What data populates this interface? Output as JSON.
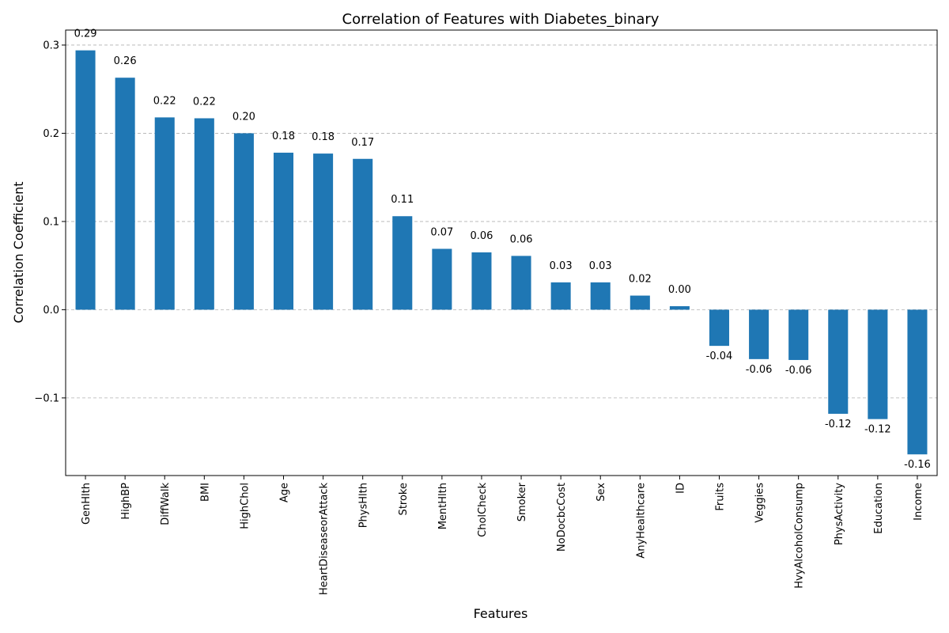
{
  "chart_data": {
    "type": "bar",
    "title": "Correlation of Features with Diabetes_binary",
    "xlabel": "Features",
    "ylabel": "Correlation Coefficient",
    "ylim": [
      -0.188,
      0.317
    ],
    "yticks": [
      -0.1,
      0.0,
      0.1,
      0.2,
      0.3
    ],
    "ytick_labels": [
      "−0.1",
      "0.0",
      "0.1",
      "0.2",
      "0.3"
    ],
    "grid": "y-dashed",
    "bar_color": "#1f77b4",
    "categories": [
      "GenHlth",
      "HighBP",
      "DiffWalk",
      "BMI",
      "HighChol",
      "Age",
      "HeartDiseaseorAttack",
      "PhysHlth",
      "Stroke",
      "MentHlth",
      "CholCheck",
      "Smoker",
      "NoDocbcCost",
      "Sex",
      "AnyHealthcare",
      "ID",
      "Fruits",
      "Veggies",
      "HvyAlcoholConsump",
      "PhysActivity",
      "Education",
      "Income"
    ],
    "values": [
      0.294,
      0.263,
      0.218,
      0.217,
      0.2,
      0.178,
      0.177,
      0.171,
      0.106,
      0.069,
      0.065,
      0.061,
      0.031,
      0.031,
      0.016,
      0.004,
      -0.041,
      -0.056,
      -0.057,
      -0.118,
      -0.124,
      -0.164
    ],
    "data_labels": [
      "0.29",
      "0.26",
      "0.22",
      "0.22",
      "0.20",
      "0.18",
      "0.18",
      "0.17",
      "0.11",
      "0.07",
      "0.06",
      "0.06",
      "0.03",
      "0.03",
      "0.02",
      "0.00",
      "-0.04",
      "-0.06",
      "-0.06",
      "-0.12",
      "-0.12",
      "-0.16"
    ]
  }
}
